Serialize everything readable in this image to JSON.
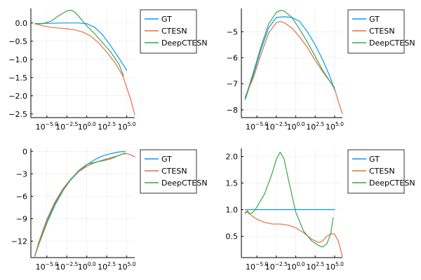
{
  "figure": {
    "colors": {
      "GT": "#009AFA",
      "CTESN": "#E36F47",
      "DeepCTESN": "#3EA44E"
    },
    "legend_position": "outer-top-right",
    "grid": true
  },
  "chart_data": [
    {
      "type": "line",
      "title": "",
      "xlabel": "",
      "ylabel": "",
      "xscale": "log10",
      "xlim": [
        -7,
        6
      ],
      "ylim": [
        -2.6,
        0.4
      ],
      "x_ticks": [
        {
          "value": -5,
          "base": "10",
          "exponent": "−5.0"
        },
        {
          "value": -2.5,
          "base": "10",
          "exponent": "−2.5"
        },
        {
          "value": 0,
          "base": "10",
          "exponent": "0.0"
        },
        {
          "value": 2.5,
          "base": "10",
          "exponent": "2.5"
        },
        {
          "value": 5,
          "base": "10",
          "exponent": "5.0"
        }
      ],
      "y_ticks": [
        {
          "value": 0,
          "label": "0.0"
        },
        {
          "value": -0.5,
          "label": "−0.5"
        },
        {
          "value": -1,
          "label": "−1.0"
        },
        {
          "value": -1.5,
          "label": "−1.5"
        },
        {
          "value": -2,
          "label": "−2.0"
        },
        {
          "value": -2.5,
          "label": "−2.5"
        }
      ],
      "legend": [
        "GT",
        "CTESN",
        "DeepCTESN"
      ],
      "series": [
        {
          "name": "GT",
          "x": [
            -6.5,
            -5,
            -3,
            -2,
            -1,
            0,
            1,
            2,
            3,
            4,
            5
          ],
          "y": [
            -0.02,
            -0.01,
            0,
            0,
            0,
            -0.02,
            -0.12,
            -0.33,
            -0.63,
            -0.96,
            -1.3
          ]
        },
        {
          "name": "CTESN",
          "x": [
            -6.5,
            -5.5,
            -4.5,
            -3.5,
            -2.5,
            -1.5,
            -0.5,
            0.5,
            1.5,
            2.5,
            3.5,
            4.5,
            5.5,
            6
          ],
          "y": [
            -0.02,
            -0.08,
            -0.12,
            -0.14,
            -0.16,
            -0.19,
            -0.25,
            -0.36,
            -0.55,
            -0.8,
            -1.08,
            -1.45,
            -2.1,
            -2.52
          ]
        },
        {
          "name": "DeepCTESN",
          "x": [
            -6.5,
            -5.5,
            -4.5,
            -3.5,
            -2.5,
            -2,
            -1.5,
            -1,
            -0.5,
            0,
            1,
            2,
            3,
            4,
            4.6
          ],
          "y": [
            -0.02,
            -0.02,
            0.05,
            0.2,
            0.33,
            0.35,
            0.3,
            0.18,
            0.05,
            -0.08,
            -0.3,
            -0.55,
            -0.8,
            -1.12,
            -1.45
          ]
        }
      ]
    },
    {
      "type": "line",
      "title": "",
      "xlabel": "",
      "ylabel": "",
      "xscale": "log10",
      "xlim": [
        -7,
        6
      ],
      "ylim": [
        -8.3,
        -4.1
      ],
      "x_ticks": [
        {
          "value": -5,
          "base": "10",
          "exponent": "−5.0"
        },
        {
          "value": -2.5,
          "base": "10",
          "exponent": "−2.5"
        },
        {
          "value": 0,
          "base": "10",
          "exponent": "0.0"
        },
        {
          "value": 2.5,
          "base": "10",
          "exponent": "2.5"
        },
        {
          "value": 5,
          "base": "10",
          "exponent": "5.0"
        }
      ],
      "y_ticks": [
        {
          "value": -5,
          "label": "−5"
        },
        {
          "value": -6,
          "label": "−6"
        },
        {
          "value": -7,
          "label": "−7"
        },
        {
          "value": -8,
          "label": "−8"
        }
      ],
      "legend": [
        "GT",
        "CTESN",
        "DeepCTESN"
      ],
      "series": [
        {
          "name": "GT",
          "x": [
            -6.5,
            -5.5,
            -4.5,
            -3.5,
            -2.5,
            -1.5,
            -0.5,
            0.5,
            1.5,
            2.5,
            3.5,
            4.5,
            5
          ],
          "y": [
            -7.6,
            -6.7,
            -5.7,
            -4.85,
            -4.45,
            -4.42,
            -4.45,
            -4.6,
            -5.0,
            -5.5,
            -6.1,
            -6.8,
            -7.25
          ]
        },
        {
          "name": "CTESN",
          "x": [
            -6.5,
            -5.5,
            -4.5,
            -3.5,
            -2.5,
            -2,
            -1.5,
            -0.5,
            0.5,
            1.5,
            2.5,
            3.5,
            4.5,
            5,
            5.5,
            6
          ],
          "y": [
            -7.5,
            -6.8,
            -5.9,
            -5.05,
            -4.65,
            -4.6,
            -4.65,
            -4.85,
            -5.2,
            -5.6,
            -6.1,
            -6.55,
            -6.95,
            -7.2,
            -7.7,
            -8.15
          ]
        },
        {
          "name": "DeepCTESN",
          "x": [
            -6.5,
            -5.5,
            -4.5,
            -3.5,
            -2.5,
            -2,
            -1.5,
            -0.5,
            0.5,
            1.5,
            2.5,
            3.5,
            4.5,
            5
          ],
          "y": [
            -7.55,
            -6.6,
            -5.6,
            -4.7,
            -4.25,
            -4.18,
            -4.2,
            -4.45,
            -4.9,
            -5.4,
            -5.95,
            -6.5,
            -6.95,
            -7.15
          ]
        }
      ]
    },
    {
      "type": "line",
      "title": "",
      "xlabel": "",
      "ylabel": "",
      "xscale": "log10",
      "xlim": [
        -7,
        6
      ],
      "ylim": [
        -14.2,
        0.4
      ],
      "x_ticks": [
        {
          "value": -5,
          "base": "10",
          "exponent": "−5.0"
        },
        {
          "value": -2.5,
          "base": "10",
          "exponent": "−2.5"
        },
        {
          "value": 0,
          "base": "10",
          "exponent": "0.0"
        },
        {
          "value": 2.5,
          "base": "10",
          "exponent": "2.5"
        },
        {
          "value": 5,
          "base": "10",
          "exponent": "5.0"
        }
      ],
      "y_ticks": [
        {
          "value": 0,
          "label": "0"
        },
        {
          "value": -3,
          "label": "−3"
        },
        {
          "value": -6,
          "label": "−6"
        },
        {
          "value": -9,
          "label": "−9"
        },
        {
          "value": -12,
          "label": "−12"
        }
      ],
      "legend": [
        "GT",
        "CTESN",
        "DeepCTESN"
      ],
      "series": [
        {
          "name": "GT",
          "x": [
            -6.5,
            -6,
            -5,
            -4,
            -3,
            -2,
            -1,
            0,
            1,
            2,
            3,
            4,
            4.8
          ],
          "y": [
            -14,
            -12.2,
            -9.3,
            -7.0,
            -5.2,
            -3.8,
            -2.7,
            -1.8,
            -1.1,
            -0.6,
            -0.3,
            -0.08,
            0
          ]
        },
        {
          "name": "CTESN",
          "x": [
            -6.5,
            -6,
            -5,
            -4,
            -3,
            -2,
            -1,
            0,
            1,
            2,
            3,
            4,
            4.5,
            5,
            5.5,
            6
          ],
          "y": [
            -14,
            -12.1,
            -9.1,
            -6.8,
            -5.0,
            -3.7,
            -2.7,
            -2.0,
            -1.5,
            -1.15,
            -0.85,
            -0.55,
            -0.35,
            -0.3,
            -0.45,
            -0.75
          ]
        },
        {
          "name": "DeepCTESN",
          "x": [
            -6.5,
            -6,
            -5,
            -4,
            -3,
            -2,
            -1,
            0,
            1,
            2,
            3,
            4,
            4.8
          ],
          "y": [
            -14,
            -12.4,
            -9.6,
            -7.2,
            -5.3,
            -3.75,
            -2.55,
            -1.75,
            -1.45,
            -1.25,
            -1.0,
            -0.55,
            -0.2
          ]
        }
      ]
    },
    {
      "type": "line",
      "title": "",
      "xlabel": "",
      "ylabel": "",
      "xscale": "log10",
      "xlim": [
        -7,
        6
      ],
      "ylim": [
        0.1,
        2.15
      ],
      "x_ticks": [
        {
          "value": -5,
          "base": "10",
          "exponent": "−5.0"
        },
        {
          "value": -2.5,
          "base": "10",
          "exponent": "−2.5"
        },
        {
          "value": 0,
          "base": "10",
          "exponent": "0.0"
        },
        {
          "value": 2.5,
          "base": "10",
          "exponent": "2.5"
        },
        {
          "value": 5,
          "base": "10",
          "exponent": "5.0"
        }
      ],
      "y_ticks": [
        {
          "value": 2,
          "label": "2.0"
        },
        {
          "value": 1.5,
          "label": "1.5"
        },
        {
          "value": 1,
          "label": "1.0"
        },
        {
          "value": 0.5,
          "label": "0.5"
        }
      ],
      "legend": [
        "GT",
        "CTESN",
        "DeepCTESN"
      ],
      "series": [
        {
          "name": "GT",
          "x": [
            -6.5,
            -5,
            -2.5,
            0,
            2.5,
            5
          ],
          "y": [
            1,
            1,
            1,
            1,
            1,
            1
          ]
        },
        {
          "name": "CTESN",
          "x": [
            -6.5,
            -6.2,
            -6,
            -5.5,
            -5,
            -4,
            -3,
            -2,
            -1,
            0,
            1,
            2,
            3,
            3.5,
            4,
            4.5,
            5,
            5.5,
            6
          ],
          "y": [
            0.95,
            0.98,
            0.93,
            0.87,
            0.82,
            0.76,
            0.73,
            0.73,
            0.71,
            0.66,
            0.57,
            0.45,
            0.38,
            0.42,
            0.5,
            0.55,
            0.54,
            0.4,
            0.12
          ]
        },
        {
          "name": "DeepCTESN",
          "x": [
            -6.5,
            -6.2,
            -6,
            -5.5,
            -5,
            -4,
            -3,
            -2.5,
            -2,
            -1.5,
            -1,
            0,
            1,
            2,
            3,
            3.5,
            4,
            4.5,
            4.8
          ],
          "y": [
            0.93,
            0.96,
            0.92,
            0.95,
            1.05,
            1.3,
            1.7,
            1.95,
            2.08,
            1.95,
            1.6,
            0.95,
            0.6,
            0.42,
            0.32,
            0.3,
            0.36,
            0.55,
            0.85
          ]
        }
      ]
    }
  ]
}
